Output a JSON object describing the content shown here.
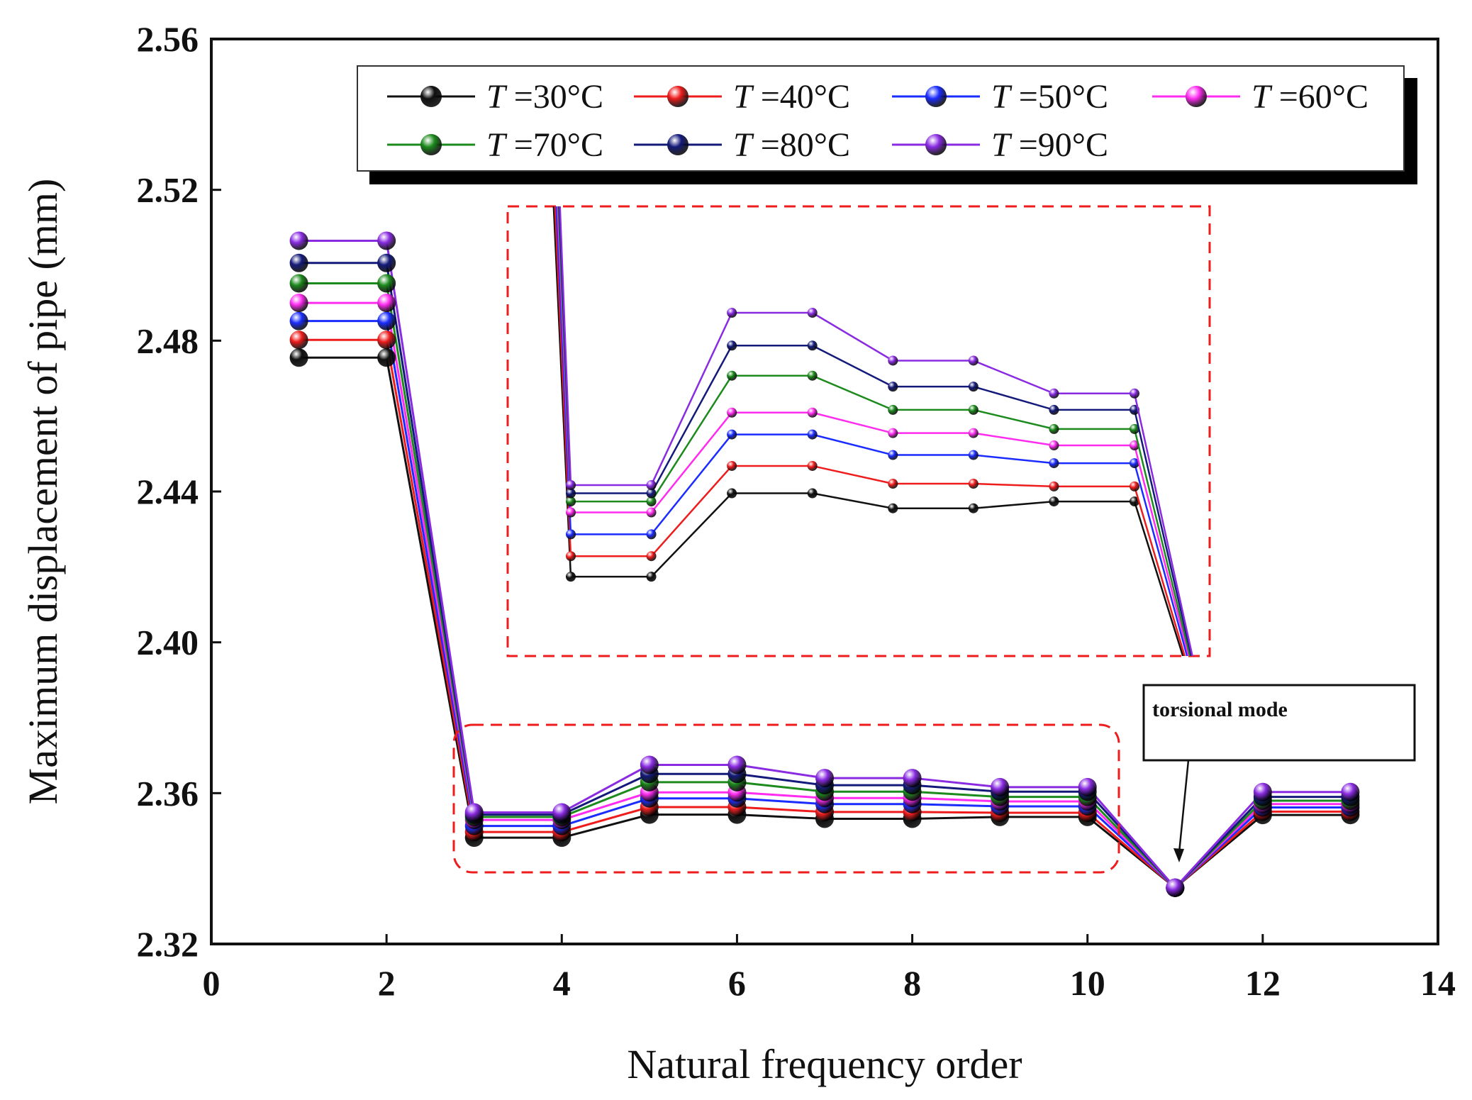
{
  "chart_data": {
    "type": "line",
    "title": "",
    "xlabel": "Natural frequency order",
    "ylabel": "Maximum displacement of pipe (mm)",
    "xlim": [
      0,
      14
    ],
    "ylim": [
      2.32,
      2.56
    ],
    "xticks": [
      "0",
      "2",
      "4",
      "6",
      "8",
      "10",
      "12",
      "14"
    ],
    "yticks": [
      "2.32",
      "2.36",
      "2.40",
      "2.44",
      "2.48",
      "2.52",
      "2.56"
    ],
    "x": [
      1,
      2,
      3,
      4,
      5,
      6,
      7,
      8,
      9,
      10,
      11,
      12,
      13
    ],
    "legend_position": "top-right",
    "series": [
      {
        "name": "T =30°C",
        "var": "T",
        "label": " =30°C",
        "color": "#111111",
        "values": [
          2.4755,
          2.4755,
          2.3482,
          2.3482,
          2.3543,
          2.3543,
          2.3532,
          2.3532,
          2.3537,
          2.3537,
          2.3349,
          2.3542,
          2.3542
        ]
      },
      {
        "name": "T =40°C",
        "var": "T",
        "label": " =40°C",
        "color": "#ee1c1c",
        "values": [
          2.4802,
          2.4802,
          2.3497,
          2.3497,
          2.3563,
          2.3563,
          2.355,
          2.355,
          2.3548,
          2.3548,
          2.3349,
          2.3551,
          2.3551
        ]
      },
      {
        "name": "T =50°C",
        "var": "T",
        "label": " =50°C",
        "color": "#1a2cff",
        "values": [
          2.4852,
          2.4852,
          2.3513,
          2.3513,
          2.3586,
          2.3586,
          2.3571,
          2.3571,
          2.3565,
          2.3565,
          2.3349,
          2.3562,
          2.3562
        ]
      },
      {
        "name": "T =60°C",
        "var": "T",
        "label": " =60°C",
        "color": "#ff2cf0",
        "values": [
          2.49,
          2.49,
          2.3529,
          2.3529,
          2.3602,
          2.3602,
          2.3587,
          2.3587,
          2.3578,
          2.3578,
          2.3349,
          2.3571,
          2.3571
        ]
      },
      {
        "name": "T =70°C",
        "var": "T",
        "label": " =70°C",
        "color": "#1c8a1c",
        "values": [
          2.4952,
          2.4952,
          2.3537,
          2.3537,
          2.3629,
          2.3629,
          2.3604,
          2.3604,
          2.359,
          2.359,
          2.3349,
          2.358,
          2.358
        ]
      },
      {
        "name": "T =80°C",
        "var": "T",
        "label": " =80°C",
        "color": "#141a7a",
        "values": [
          2.5006,
          2.5006,
          2.3543,
          2.3543,
          2.3651,
          2.3651,
          2.3621,
          2.3621,
          2.3604,
          2.3604,
          2.3349,
          2.359,
          2.359
        ]
      },
      {
        "name": "T =90°C",
        "var": "T",
        "label": " =90°C",
        "color": "#8a2be2",
        "values": [
          2.5065,
          2.5065,
          2.3549,
          2.3549,
          2.3675,
          2.3675,
          2.364,
          2.364,
          2.3616,
          2.3616,
          2.3349,
          2.3603,
          2.3603
        ]
      }
    ],
    "annotations": [
      {
        "text": "torsional mode",
        "target_x": 11,
        "target_y": 2.3349
      },
      {
        "text": "",
        "type": "zoom-inset",
        "x_range": [
          3,
          10
        ],
        "y_range": [
          2.338,
          2.371
        ]
      }
    ]
  }
}
